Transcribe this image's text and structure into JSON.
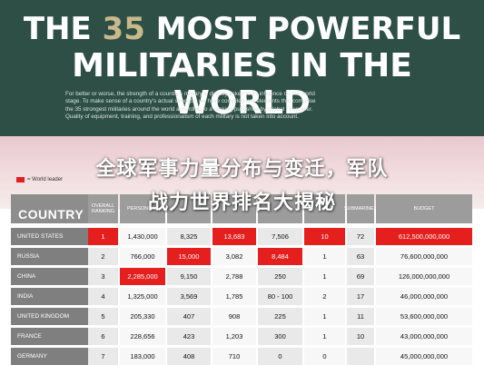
{
  "header": {
    "title_pre": "THE ",
    "title_num": "35",
    "title_post": " MOST POWERFUL",
    "title_line2": "MILITARIES IN THE WORLD",
    "intro_lines": [
      "For better or worse, the strength of a country's military is directly linked to its influence on the world",
      "stage. To make sense of a country's actual strength, we have compiled key elements that comprise",
      "the 35 strongest militaries around the world according to a ranking published by Global Firepower.",
      "Quality of equipment, training, and professionalism of each military is not taken into account."
    ]
  },
  "overlay": {
    "line1": "全球军事力量分布与变迁，军队",
    "line2": "战力世界排名大揭秘"
  },
  "legend": {
    "label": "= World leader",
    "color": "#e02020"
  },
  "table": {
    "country_header": "COUNTRY",
    "columns": [
      "OVERALL RANKING",
      "PERSONNEL",
      "",
      "",
      "",
      "",
      "SUBMARINES",
      "BUDGET"
    ],
    "rows": [
      {
        "country": "UNITED STATES",
        "cells": [
          "1",
          "1,430,000",
          "8,325",
          "13,683",
          "7,506",
          "10",
          "72",
          "612,500,000,000"
        ],
        "highlight": [
          0,
          3,
          5,
          7
        ]
      },
      {
        "country": "RUSSIA",
        "cells": [
          "2",
          "766,000",
          "15,000",
          "3,082",
          "8,484",
          "1",
          "63",
          "76,600,000,000"
        ],
        "highlight": [
          2,
          4
        ]
      },
      {
        "country": "CHINA",
        "cells": [
          "3",
          "2,285,000",
          "9,150",
          "2,788",
          "250",
          "1",
          "69",
          "126,000,000,000"
        ],
        "highlight": [
          1
        ]
      },
      {
        "country": "INDIA",
        "cells": [
          "4",
          "1,325,000",
          "3,569",
          "1,785",
          "80 - 100",
          "2",
          "17",
          "46,000,000,000"
        ],
        "highlight": []
      },
      {
        "country": "UNITED KINGDOM",
        "cells": [
          "5",
          "205,330",
          "407",
          "908",
          "225",
          "1",
          "11",
          "53,600,000,000"
        ],
        "highlight": []
      },
      {
        "country": "FRANCE",
        "cells": [
          "6",
          "228,656",
          "423",
          "1,203",
          "300",
          "1",
          "10",
          "43,000,000,000"
        ],
        "highlight": []
      },
      {
        "country": "GERMANY",
        "cells": [
          "7",
          "183,000",
          "408",
          "710",
          "0",
          "0",
          "",
          "45,000,000,000"
        ],
        "highlight": []
      }
    ]
  },
  "colors": {
    "header_bg": "#2d4f45",
    "highlight": "#e51e1e",
    "country_bg": "#7f7f7f",
    "colhead_bg": "#9c9c9c"
  }
}
